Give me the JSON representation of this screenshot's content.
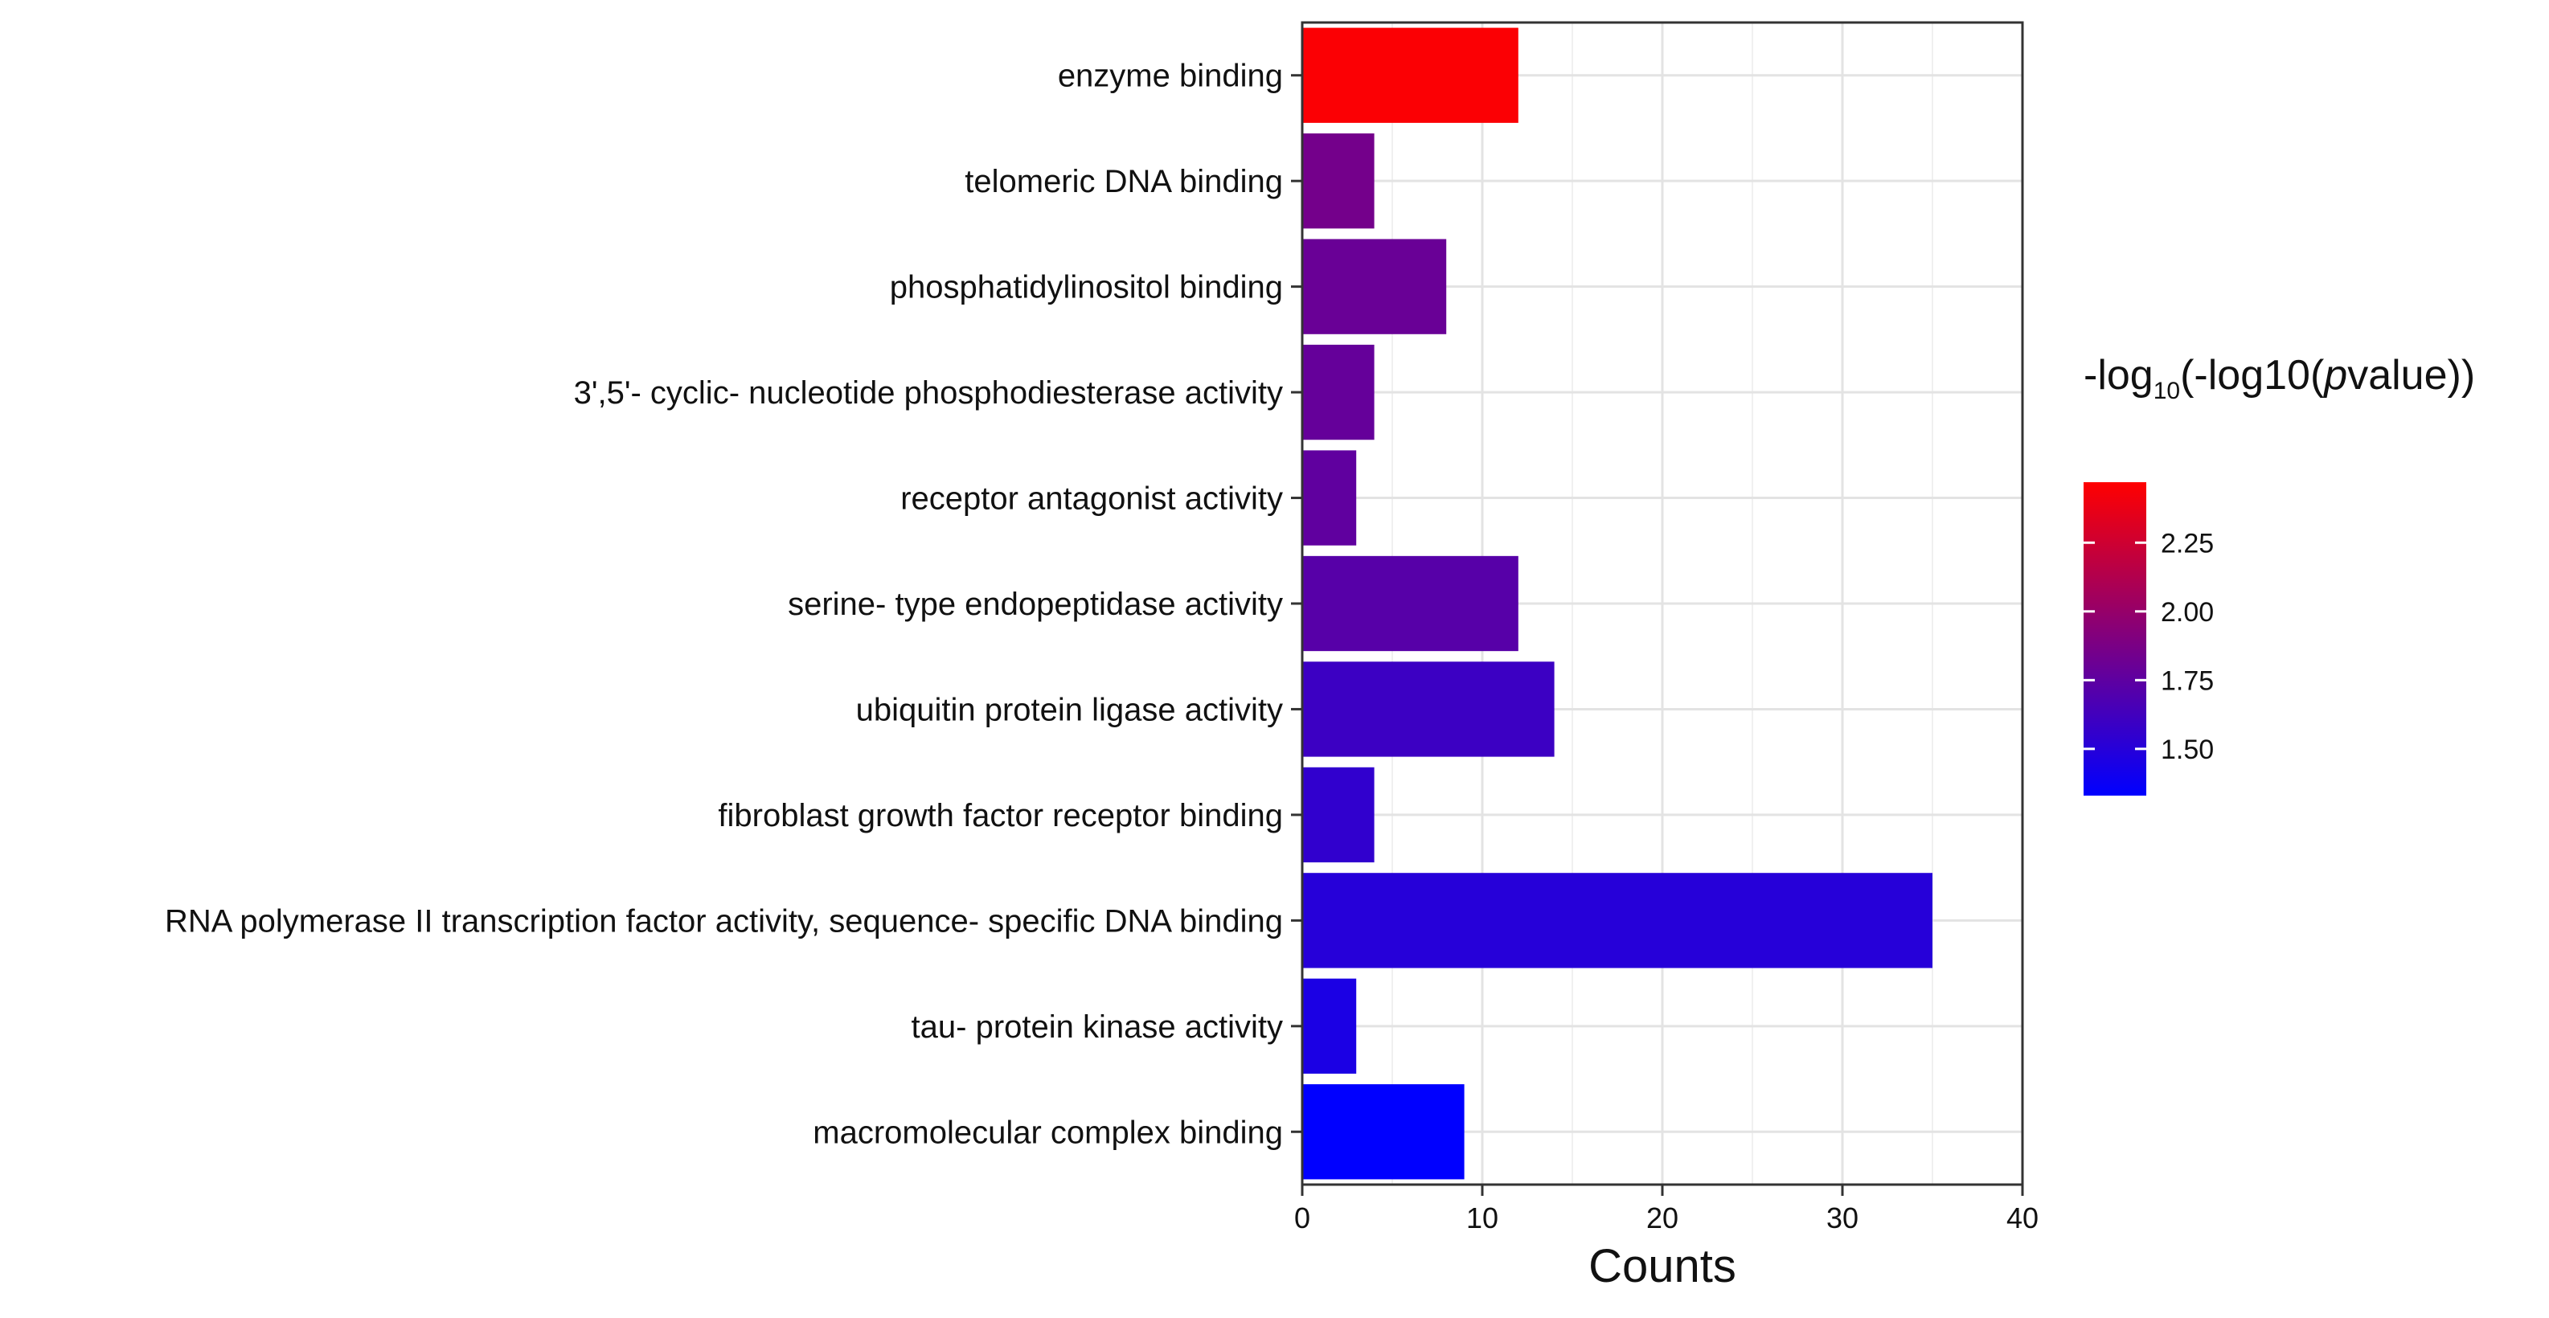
{
  "chart_data": {
    "type": "bar",
    "orientation": "horizontal",
    "title": "",
    "xlabel": "Counts",
    "ylabel": "",
    "xlim": [
      0,
      40
    ],
    "x_ticks": [
      "0",
      "10",
      "20",
      "30",
      "40"
    ],
    "grid": true,
    "categories": [
      "enzyme binding",
      "telomeric DNA binding",
      "phosphatidylinositol binding",
      "3',5'- cyclic- nucleotide phosphodiesterase activity",
      "receptor antagonist activity",
      "serine- type endopeptidase activity",
      "ubiquitin protein ligase activity",
      "fibroblast growth factor receptor binding",
      "RNA polymerase II transcription factor activity, sequence- specific DNA binding",
      "tau- protein kinase activity",
      "macromolecular complex binding"
    ],
    "values": [
      12,
      4,
      8,
      4,
      3,
      12,
      14,
      4,
      35,
      3,
      9
    ],
    "color_values": [
      2.45,
      1.85,
      1.8,
      1.78,
      1.76,
      1.72,
      1.6,
      1.55,
      1.5,
      1.45,
      1.33
    ],
    "color_bar": {
      "title_prefix": "-log",
      "title_subscript": "10",
      "title_mid": "(-log10(",
      "title_italic": "p",
      "title_suffix": "value))",
      "ticks": [
        "2.25",
        "2.00",
        "1.75",
        "1.50"
      ],
      "tick_values": [
        2.25,
        2.0,
        1.75,
        1.5
      ],
      "range": [
        1.33,
        2.47
      ],
      "low_color": "#0000ff",
      "high_color": "#ff0000",
      "legend_position": "right"
    }
  }
}
